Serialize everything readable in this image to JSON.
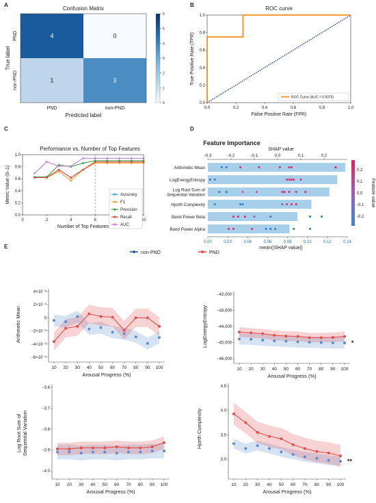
{
  "panel_letters": {
    "a": "A",
    "b": "B",
    "c": "C",
    "d": "D",
    "e": "E"
  },
  "chart_data": [
    {
      "panel": "A",
      "type": "heatmap",
      "title": "Confusion Matrix",
      "xlabel": "Predicted label",
      "ylabel": "True label",
      "x_categories": [
        "PND",
        "non-PND"
      ],
      "y_categories": [
        "PND",
        "non-PND"
      ],
      "values": [
        [
          4,
          0
        ],
        [
          1,
          3
        ]
      ],
      "colorbar": {
        "min": 0,
        "max": 6,
        "ticks": [
          "0",
          "1",
          "2",
          "3",
          "4",
          "5",
          "6"
        ]
      },
      "colors": {
        "low": "#f7fbff",
        "high": "#08306b"
      }
    },
    {
      "panel": "B",
      "type": "line",
      "title": "ROC curve",
      "xlabel": "False Positive Rate (FPR)",
      "ylabel": "True Positive Rate (TPR)",
      "xlim": [
        0,
        1
      ],
      "ylim": [
        0,
        1
      ],
      "xticks": [
        "0.0",
        "0.2",
        "0.4",
        "0.6",
        "0.8",
        "1.0"
      ],
      "yticks": [
        "0.0",
        "0.2",
        "0.4",
        "0.6",
        "0.8",
        "1.0"
      ],
      "series": [
        {
          "name": "ROC Curve (AUC = 0.9375)",
          "color": "#f28e1c",
          "x": [
            0,
            0,
            0.25,
            0.25,
            1
          ],
          "y": [
            0,
            0.75,
            0.75,
            1,
            1
          ]
        }
      ],
      "reference_line": {
        "x": [
          0,
          1
        ],
        "y": [
          0,
          1
        ],
        "color": "#1f3a8a",
        "style": "dotted"
      },
      "legend_position": "bottom-right"
    },
    {
      "panel": "C",
      "type": "line",
      "title": "Performance vs. Number of Top Features",
      "xlabel": "Number of Top Features",
      "ylabel": "Metric Value (0–1)",
      "xlim": [
        1,
        10
      ],
      "ylim": [
        0,
        1
      ],
      "xticks": [
        "0",
        "2",
        "4",
        "6",
        "8",
        "10"
      ],
      "yticks": [
        "0.0",
        "0.2",
        "0.4",
        "0.6",
        "0.8",
        "1.0"
      ],
      "x": [
        1,
        2,
        3,
        4,
        5,
        6,
        7,
        8,
        9,
        10
      ],
      "vline": 6,
      "series": [
        {
          "name": "Accuracy",
          "color": "#4a9fd4",
          "values": [
            0.62,
            0.62,
            0.75,
            0.62,
            0.75,
            0.88,
            0.88,
            0.88,
            0.88,
            0.88
          ]
        },
        {
          "name": "F1",
          "color": "#f0a030",
          "values": [
            0.62,
            0.62,
            0.72,
            0.57,
            0.75,
            0.86,
            0.86,
            0.86,
            0.86,
            0.86
          ]
        },
        {
          "name": "Precision",
          "color": "#3aa048",
          "values": [
            0.63,
            0.63,
            0.83,
            0.8,
            0.86,
            0.9,
            0.9,
            0.9,
            0.9,
            0.9
          ]
        },
        {
          "name": "Recall",
          "color": "#e04a3a",
          "values": [
            0.62,
            0.62,
            0.75,
            0.62,
            0.75,
            0.88,
            0.88,
            0.88,
            0.88,
            0.88
          ]
        },
        {
          "name": "AUC",
          "color": "#c080d0",
          "values": [
            0.69,
            0.88,
            0.81,
            0.81,
            0.94,
            0.94,
            0.94,
            0.94,
            0.94,
            0.94
          ]
        }
      ],
      "legend_position": "bottom-right"
    },
    {
      "panel": "D",
      "type": "bar",
      "title": "Feature Importance",
      "xlabel": "mean(|SHAP value|)",
      "x2label": "SHAP value",
      "colorbar_label": "Feature value",
      "categories": [
        "Arithmetic Mean",
        "LogEnergyEntropy",
        "Log Root Sum of Sequential Variation",
        "Hjorth Complexity",
        "Band Power Beta",
        "Band Power Alpha"
      ],
      "values": [
        0.138,
        0.13,
        0.122,
        0.104,
        0.09,
        0.082
      ],
      "xlim": [
        0,
        0.14
      ],
      "xticks": [
        "0.00",
        "0.02",
        "0.04",
        "0.06",
        "0.08",
        "0.10",
        "0.12",
        "0.14"
      ],
      "shap_xlim": [
        -0.3,
        0.3
      ],
      "shap_ticks": [
        "-0.3",
        "-0.2",
        "-0.1",
        "0.0",
        "0.1",
        "0.2"
      ],
      "colorbar_ticks": [
        "0.2",
        "0.1",
        "0.0",
        "-0.1",
        "-0.2"
      ],
      "shap_points": [
        [
          {
            "v": -0.24,
            "c": "#3d86c6"
          },
          {
            "v": -0.22,
            "c": "#3d86c6"
          },
          {
            "v": -0.16,
            "c": "#d63a7e"
          },
          {
            "v": -0.08,
            "c": "#d63a7e"
          },
          {
            "v": 0.01,
            "c": "#d63a7e"
          },
          {
            "v": 0.05,
            "c": "#d63a7e"
          },
          {
            "v": 0.06,
            "c": "#d63a7e"
          },
          {
            "v": 0.25,
            "c": "#e0245e"
          }
        ],
        [
          {
            "v": -0.29,
            "c": "#3d86c6"
          },
          {
            "v": -0.27,
            "c": "#3d86c6"
          },
          {
            "v": 0.04,
            "c": "#d63a7e"
          },
          {
            "v": 0.05,
            "c": "#d63a7e"
          },
          {
            "v": 0.06,
            "c": "#d63a7e"
          },
          {
            "v": 0.07,
            "c": "#d63a7e"
          },
          {
            "v": 0.1,
            "c": "#d63a7e"
          }
        ],
        [
          {
            "v": -0.25,
            "c": "#3d86c6"
          },
          {
            "v": -0.22,
            "c": "#3d86c6"
          },
          {
            "v": -0.15,
            "c": "#c65aa0"
          },
          {
            "v": -0.09,
            "c": "#c65aa0"
          },
          {
            "v": 0.02,
            "c": "#d63a7e"
          },
          {
            "v": 0.03,
            "c": "#d63a7e"
          },
          {
            "v": 0.05,
            "c": "#d63a7e"
          },
          {
            "v": 0.08,
            "c": "#d63a7e"
          },
          {
            "v": 0.12,
            "c": "#d63a7e"
          }
        ],
        [
          {
            "v": -0.27,
            "c": "#3d86c6"
          },
          {
            "v": -0.16,
            "c": "#3d86c6"
          },
          {
            "v": -0.15,
            "c": "#3d86c6"
          },
          {
            "v": 0.02,
            "c": "#8a6ac0"
          },
          {
            "v": 0.04,
            "c": "#d63a7e"
          },
          {
            "v": 0.06,
            "c": "#d63a7e"
          },
          {
            "v": 0.08,
            "c": "#d63a7e"
          }
        ],
        [
          {
            "v": -0.19,
            "c": "#d63a7e"
          },
          {
            "v": -0.17,
            "c": "#d63a7e"
          },
          {
            "v": -0.14,
            "c": "#d63a7e"
          },
          {
            "v": -0.1,
            "c": "#8a6ac0"
          },
          {
            "v": -0.03,
            "c": "#3d86c6"
          },
          {
            "v": 0.14,
            "c": "#3d86c6"
          },
          {
            "v": 0.19,
            "c": "#3d86c6"
          }
        ],
        [
          {
            "v": -0.21,
            "c": "#d63a7e"
          },
          {
            "v": -0.19,
            "c": "#d63a7e"
          },
          {
            "v": -0.11,
            "c": "#d63a7e"
          },
          {
            "v": -0.05,
            "c": "#3d86c6"
          },
          {
            "v": -0.03,
            "c": "#3d86c6"
          },
          {
            "v": -0.01,
            "c": "#3d86c6"
          },
          {
            "v": 0.07,
            "c": "#3d86c6"
          },
          {
            "v": 0.14,
            "c": "#3d86c6"
          }
        ]
      ]
    },
    {
      "panel": "E",
      "type": "line",
      "legend": [
        {
          "name": "non-PND",
          "color": "#2a5ea8"
        },
        {
          "name": "PND",
          "color": "#e05050"
        }
      ],
      "xlabel": "Arousal Progress (%)",
      "x": [
        10,
        20,
        30,
        40,
        50,
        60,
        70,
        80,
        90,
        100
      ],
      "xticks": [
        "10",
        "20",
        "30",
        "40",
        "50",
        "60",
        "70",
        "80",
        "90",
        "100"
      ],
      "subplots": [
        {
          "ylabel": "Arithmetic Mean",
          "ylim": [
            -6e-08,
            4e-08
          ],
          "ytick_values": [
            4e-08,
            2e-08,
            0,
            -2e-08,
            -4e-08,
            -6e-08
          ],
          "ytick_labels": [
            "4×10⁻⁸",
            "2×10⁻⁸",
            "0",
            "−2×10⁻⁸",
            "−4×10⁻⁸",
            "−6×10⁻⁸"
          ],
          "significance": "",
          "series": [
            {
              "name": "non-PND",
              "values": [
                -4e-09,
                -6e-09,
                2e-09,
                -1.7e-08,
                -1.5e-08,
                -2.2e-08,
                -2.4e-08,
                -2.9e-08,
                -3.9e-08,
                -3e-08
              ],
              "band": 9e-09
            },
            {
              "name": "PND",
              "values": [
                -3.6e-08,
                -1.6e-08,
                -1.3e-08,
                6e-09,
                2e-09,
                1e-09,
                -1.9e-08,
                0.0,
                0.0,
                -1.3e-08
              ],
              "band": 1.4e-08
            }
          ]
        },
        {
          "ylabel": "LogEnergyEntropy",
          "ylim": [
            -46000,
            -42000
          ],
          "ytick_values": [
            -42000,
            -43000,
            -44000,
            -45000,
            -46000
          ],
          "ytick_labels": [
            "−42,000",
            "−43,000",
            "−44,000",
            "−45,000",
            "−46,000"
          ],
          "significance": "*",
          "series": [
            {
              "name": "non-PND",
              "values": [
                -44780,
                -44800,
                -44850,
                -44900,
                -44920,
                -44960,
                -44980,
                -45000,
                -45020,
                -45020
              ],
              "band": 350
            },
            {
              "name": "PND",
              "values": [
                -44350,
                -44400,
                -44450,
                -44550,
                -44600,
                -44620,
                -44700,
                -44700,
                -44680,
                -44620
              ],
              "band": 300
            }
          ]
        },
        {
          "ylabel": "Log Root Sum of Sequential Variation",
          "ylim": [
            -4.0,
            -3.6
          ],
          "ytick_values": [
            -3.6,
            -3.7,
            -3.8,
            -3.9,
            -4.0
          ],
          "ytick_labels": [
            "−3.6",
            "−3.7",
            "−3.8",
            "−3.9",
            "−4.0"
          ],
          "significance": "",
          "series": [
            {
              "name": "non-PND",
              "values": [
                -3.91,
                -3.91,
                -3.915,
                -3.91,
                -3.91,
                -3.915,
                -3.91,
                -3.91,
                -3.905,
                -3.905
              ],
              "band": 0.035
            },
            {
              "name": "PND",
              "values": [
                -3.895,
                -3.895,
                -3.89,
                -3.89,
                -3.89,
                -3.885,
                -3.89,
                -3.89,
                -3.885,
                -3.865
              ],
              "band": 0.03
            }
          ]
        },
        {
          "ylabel": "Hjorth Complexity",
          "ylim": [
            2.75,
            4.5
          ],
          "ytick_values": [
            4.5,
            4.0,
            3.5,
            3.0
          ],
          "ytick_labels": [
            "4.5",
            "4.0",
            "3.5",
            "3.0"
          ],
          "significance": "**",
          "series": [
            {
              "name": "non-PND",
              "values": [
                3.32,
                3.22,
                3.28,
                3.22,
                3.15,
                3.1,
                3.05,
                3.02,
                2.98,
                2.96
              ],
              "band": 0.1
            },
            {
              "name": "PND",
              "values": [
                3.93,
                3.75,
                3.55,
                3.47,
                3.42,
                3.3,
                3.22,
                3.16,
                3.13,
                3.07
              ],
              "band": 0.22
            }
          ]
        }
      ]
    }
  ]
}
